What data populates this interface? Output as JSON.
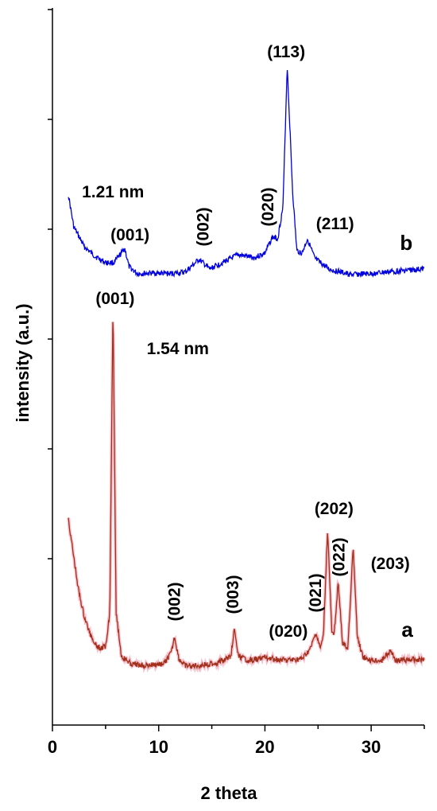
{
  "chart_data": {
    "type": "line",
    "xlabel": "2 theta",
    "ylabel": "intensity (a.u.)",
    "xlim": [
      0,
      35
    ],
    "x_ticks": [
      "0",
      "10",
      "20",
      "30"
    ],
    "y_ticks": "unlabeled",
    "grid": false,
    "legend": "none",
    "series": [
      {
        "name": "b",
        "color": "#0000e0",
        "baseline": 340,
        "end_level": 338,
        "points": [
          [
            1.5,
            245
          ],
          [
            2.0,
            285
          ],
          [
            3.0,
            310
          ],
          [
            4.0,
            322
          ],
          [
            5.0,
            330
          ],
          [
            5.8,
            330
          ],
          [
            6.5,
            318
          ],
          [
            6.8,
            312
          ],
          [
            7.2,
            335
          ],
          [
            8.0,
            344
          ],
          [
            9.5,
            343
          ],
          [
            11.0,
            344
          ],
          [
            12.5,
            342
          ],
          [
            13.8,
            326
          ],
          [
            14.8,
            338
          ],
          [
            16.0,
            330
          ],
          [
            17.5,
            320
          ],
          [
            19.0,
            324
          ],
          [
            20.0,
            318
          ],
          [
            20.7,
            298
          ],
          [
            21.2,
            300
          ],
          [
            21.7,
            260
          ],
          [
            22.1,
            82
          ],
          [
            22.6,
            240
          ],
          [
            23.0,
            315
          ],
          [
            23.5,
            318
          ],
          [
            24.0,
            300
          ],
          [
            24.7,
            325
          ],
          [
            26.0,
            338
          ],
          [
            28.0,
            345
          ],
          [
            30.0,
            344
          ],
          [
            32.0,
            341
          ],
          [
            35.0,
            338
          ]
        ],
        "annotations": [
          {
            "text": "1.21 nm",
            "x": 5.7,
            "y": 248,
            "anchor": "middle",
            "rotate": 0
          },
          {
            "text": "(001)",
            "x": 7.3,
            "y": 302,
            "anchor": "middle",
            "rotate": 0
          },
          {
            "text": "(002)",
            "x": 14.2,
            "y": 285,
            "anchor": "middle",
            "rotate": -90
          },
          {
            "text": "(020)",
            "x": 20.3,
            "y": 260,
            "anchor": "middle",
            "rotate": -90
          },
          {
            "text": "(113)",
            "x": 22.0,
            "y": 72,
            "anchor": "middle",
            "rotate": 0
          },
          {
            "text": "(211)",
            "x": 26.6,
            "y": 288,
            "anchor": "middle",
            "rotate": 0
          },
          {
            "text": "b",
            "x": 33.3,
            "y": 314,
            "anchor": "middle",
            "rotate": 0,
            "letter": true
          }
        ]
      },
      {
        "name": "a",
        "color": "#a0301a",
        "baseline": 835,
        "end_level": 828,
        "points": [
          [
            1.5,
            652
          ],
          [
            2.0,
            700
          ],
          [
            2.5,
            745
          ],
          [
            3.0,
            775
          ],
          [
            3.5,
            795
          ],
          [
            4.0,
            808
          ],
          [
            4.5,
            815
          ],
          [
            5.0,
            812
          ],
          [
            5.4,
            770
          ],
          [
            5.7,
            382
          ],
          [
            6.0,
            770
          ],
          [
            6.5,
            825
          ],
          [
            7.5,
            835
          ],
          [
            9.0,
            836
          ],
          [
            10.5,
            834
          ],
          [
            11.2,
            820
          ],
          [
            11.5,
            800
          ],
          [
            11.9,
            828
          ],
          [
            12.5,
            837
          ],
          [
            14.0,
            836
          ],
          [
            15.5,
            833
          ],
          [
            16.8,
            825
          ],
          [
            17.1,
            790
          ],
          [
            17.5,
            825
          ],
          [
            18.5,
            830
          ],
          [
            20.0,
            826
          ],
          [
            21.0,
            828
          ],
          [
            22.0,
            830
          ],
          [
            23.5,
            828
          ],
          [
            24.3,
            815
          ],
          [
            24.8,
            795
          ],
          [
            25.2,
            815
          ],
          [
            25.5,
            800
          ],
          [
            25.9,
            665
          ],
          [
            26.3,
            795
          ],
          [
            26.5,
            800
          ],
          [
            26.9,
            730
          ],
          [
            27.3,
            808
          ],
          [
            27.8,
            815
          ],
          [
            28.3,
            688
          ],
          [
            28.7,
            800
          ],
          [
            29.2,
            825
          ],
          [
            30.0,
            830
          ],
          [
            31.0,
            830
          ],
          [
            31.8,
            817
          ],
          [
            32.3,
            830
          ],
          [
            35.0,
            828
          ]
        ],
        "annotations": [
          {
            "text": "(001)",
            "x": 5.9,
            "y": 382,
            "anchor": "middle",
            "rotate": 0
          },
          {
            "text": "1.54 nm",
            "x": 11.8,
            "y": 445,
            "anchor": "middle",
            "rotate": 0
          },
          {
            "text": "(002)",
            "x": 11.5,
            "y": 756,
            "anchor": "middle",
            "rotate": -90
          },
          {
            "text": "(003)",
            "x": 17.0,
            "y": 747,
            "anchor": "middle",
            "rotate": -90
          },
          {
            "text": "(020)",
            "x": 22.2,
            "y": 800,
            "anchor": "middle",
            "rotate": 0
          },
          {
            "text": "(021)",
            "x": 24.8,
            "y": 745,
            "anchor": "middle",
            "rotate": -90
          },
          {
            "text": "(202)",
            "x": 26.5,
            "y": 646,
            "anchor": "middle",
            "rotate": 0
          },
          {
            "text": "(022)",
            "x": 27.0,
            "y": 700,
            "anchor": "middle",
            "rotate": -90
          },
          {
            "text": "(203)",
            "x": 31.8,
            "y": 715,
            "anchor": "middle",
            "rotate": 0
          },
          {
            "text": "a",
            "x": 33.4,
            "y": 800,
            "anchor": "middle",
            "rotate": 0,
            "letter": true
          }
        ]
      }
    ]
  }
}
